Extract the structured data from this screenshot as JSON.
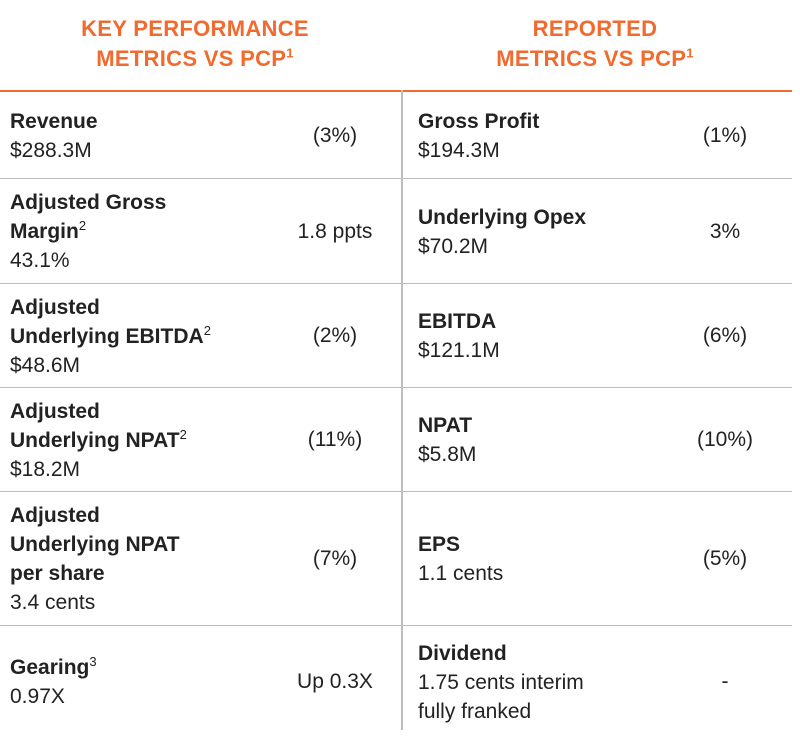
{
  "headers": {
    "left_line1": "KEY PERFORMANCE",
    "left_line2": "METRICS VS PCP",
    "left_sup": "1",
    "right_line1": "REPORTED",
    "right_line2": "METRICS VS PCP",
    "right_sup": "1"
  },
  "rows": [
    {
      "left": {
        "label": "Revenue",
        "sup": "",
        "value": "$288.3M",
        "change": "(3%)"
      },
      "right": {
        "label": "Gross Profit",
        "sup": "",
        "value": "$194.3M",
        "change": "(1%)"
      }
    },
    {
      "left": {
        "label": "Adjusted Gross\nMargin",
        "sup": "2",
        "value": "43.1%",
        "change": "1.8 ppts"
      },
      "right": {
        "label": "Underlying Opex",
        "sup": "",
        "value": "$70.2M",
        "change": "3%"
      }
    },
    {
      "left": {
        "label": "Adjusted\nUnderlying EBITDA",
        "sup": "2",
        "value": "$48.6M",
        "change": "(2%)"
      },
      "right": {
        "label": "EBITDA",
        "sup": "",
        "value": "$121.1M",
        "change": "(6%)"
      }
    },
    {
      "left": {
        "label": "Adjusted\nUnderlying NPAT",
        "sup": "2",
        "value": "$18.2M",
        "change": "(11%)"
      },
      "right": {
        "label": "NPAT",
        "sup": "",
        "value": "$5.8M",
        "change": "(10%)"
      }
    },
    {
      "left": {
        "label": "Adjusted\nUnderlying NPAT\nper share",
        "sup": "",
        "value": "3.4 cents",
        "change": "(7%)"
      },
      "right": {
        "label": "EPS",
        "sup": "",
        "value": "1.1 cents",
        "change": "(5%)"
      }
    },
    {
      "left": {
        "label": "Gearing",
        "sup": "3",
        "value": "0.97X",
        "change": "Up 0.3X"
      },
      "right": {
        "label": "Dividend",
        "sup": "",
        "value": "1.75 cents interim\nfully franked",
        "change": "-"
      }
    }
  ]
}
